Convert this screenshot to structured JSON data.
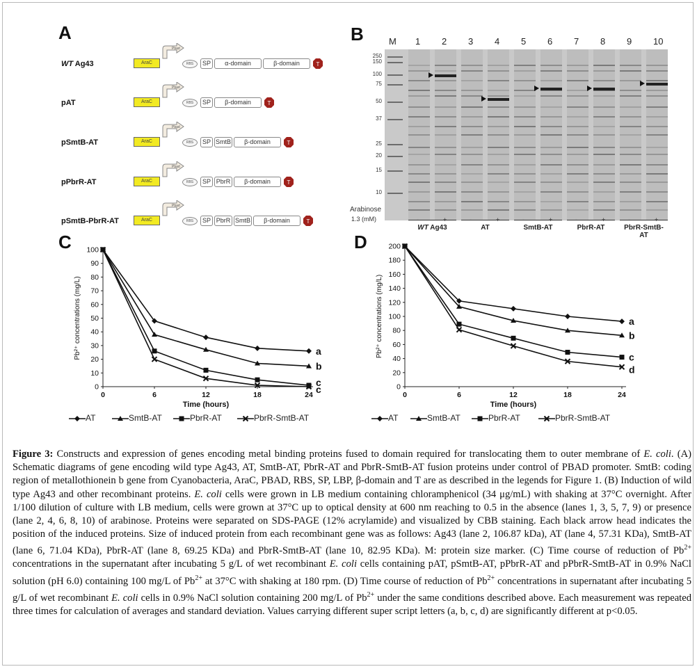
{
  "panel_a": {
    "label": "A",
    "constructs": [
      {
        "name_italic": "WT",
        "name": " Ag43",
        "segments": [
          "SP",
          "α-domain",
          "β-domain"
        ]
      },
      {
        "name_italic": "",
        "name": "pAT",
        "segments": [
          "SP",
          "β-domain"
        ]
      },
      {
        "name_italic": "",
        "name": "pSmtB-AT",
        "segments": [
          "SP",
          "SmtB",
          "β-domain"
        ]
      },
      {
        "name_italic": "",
        "name": "pPbrR-AT",
        "segments": [
          "SP",
          "PbrR",
          "β-domain"
        ]
      },
      {
        "name_italic": "",
        "name": "pSmtB-PbrR-AT",
        "segments": [
          "SP",
          "PbrR",
          "SmtB",
          "β-domain"
        ]
      }
    ],
    "arac_label": "AraC",
    "pbad_label": "Pbad",
    "rbs_label": "RBS",
    "terminator_label": "T"
  },
  "panel_b": {
    "label": "B",
    "marker_label": "M",
    "lane_numbers": [
      "1",
      "2",
      "3",
      "4",
      "5",
      "6",
      "7",
      "8",
      "9",
      "10"
    ],
    "mw_markers": [
      "250",
      "150",
      "100",
      "75",
      "50",
      "37",
      "25",
      "20",
      "15",
      "10"
    ],
    "arabinose_label": "Arabinose",
    "arabinose_conc": "1.3 (mM)",
    "minus": "-",
    "plus": "+",
    "groups": [
      {
        "name_italic": "WT",
        "name": " Ag43"
      },
      {
        "name_italic": "",
        "name": "AT"
      },
      {
        "name_italic": "",
        "name": "SmtB-AT"
      },
      {
        "name_italic": "",
        "name": "PbrR-AT"
      },
      {
        "name_italic": "",
        "name": "PbrR-SmtB-AT"
      }
    ]
  },
  "panel_c": {
    "label": "C",
    "chart_data": {
      "type": "line",
      "x": [
        0,
        6,
        12,
        18,
        24
      ],
      "xlabel": "Time (hours)",
      "ylabel": "Pb²⁺ concentrations (mg/L)",
      "ylim": [
        0,
        100
      ],
      "yticks": [
        0,
        10,
        20,
        30,
        40,
        50,
        60,
        70,
        80,
        90,
        100
      ],
      "xticks": [
        0,
        6,
        12,
        18,
        24
      ],
      "series": [
        {
          "name": "AT",
          "values": [
            100,
            48,
            36,
            28,
            26
          ],
          "letter": "a"
        },
        {
          "name": "SmtB-AT",
          "values": [
            100,
            38,
            27,
            17,
            15
          ],
          "letter": "b"
        },
        {
          "name": "PbrR-AT",
          "values": [
            100,
            26,
            12,
            5,
            1
          ],
          "letter": "c"
        },
        {
          "name": "PbrR-SmtB-AT",
          "values": [
            100,
            20,
            6,
            1,
            0
          ],
          "letter": "c"
        }
      ]
    }
  },
  "panel_d": {
    "label": "D",
    "chart_data": {
      "type": "line",
      "x": [
        0,
        6,
        12,
        18,
        24
      ],
      "xlabel": "Time (hours)",
      "ylabel": "Pb²⁺ concentrations (mg/L)",
      "ylim": [
        0,
        200
      ],
      "yticks": [
        0,
        20,
        40,
        60,
        80,
        100,
        120,
        140,
        160,
        180,
        200
      ],
      "xticks": [
        0,
        6,
        12,
        18,
        24
      ],
      "series": [
        {
          "name": "AT",
          "values": [
            200,
            122,
            111,
            100,
            93
          ],
          "letter": "a"
        },
        {
          "name": "SmtB-AT",
          "values": [
            200,
            114,
            94,
            80,
            73
          ],
          "letter": "b"
        },
        {
          "name": "PbrR-AT",
          "values": [
            200,
            89,
            69,
            49,
            42
          ],
          "letter": "c"
        },
        {
          "name": "PbrR-SmtB-AT",
          "values": [
            200,
            81,
            58,
            36,
            28
          ],
          "letter": "d"
        }
      ]
    }
  },
  "legend": [
    "AT",
    "SmtB-AT",
    "PbrR-AT",
    "PbrR-SmtB-AT"
  ],
  "caption": {
    "label": "Figure 3:",
    "text": "Constructs and expression of genes encoding metal binding proteins fused to domain required for translocating them to outer membrane of E. coli. (A) Schematic diagrams of gene encoding wild type Ag43, AT, SmtB-AT, PbrR-AT and PbrR-SmtB-AT fusion proteins under control of PBAD promoter. SmtB: coding region of metallothionein b gene from Cyanobacteria, AraC, PBAD, RBS, SP, LBP, β-domain and T are as described in the legends for Figure 1. (B) Induction of wild type Ag43 and other recombinant proteins. E. coli cells were grown in LB medium containing chloramphenicol (34 μg/mL) with shaking at 37°C overnight. After 1/100 dilution of culture with LB medium, cells were grown at 37°C up to optical density at 600 nm reaching to 0.5 in the absence (lanes 1, 3, 5, 7, 9) or presence (lane 2, 4, 6, 8, 10) of arabinose. Proteins were separated on SDS-PAGE (12% acrylamide) and visualized by CBB staining. Each black arrow head indicates the position of the induced proteins. Size of induced protein from each recombinant gene was as follows: Ag43 (lane 2, 106.87 kDa), AT (lane 4, 57.31 KDa), SmtB-AT (lane 6, 71.04 KDa), PbrR-AT (lane 8, 69.25 KDa) and PbrR-SmtB-AT (lane 10, 82.95 KDa). M: protein size marker. (C) Time course of reduction of Pb2+ concentrations in the supernatant after incubating 5 g/L of wet recombinant E. coli cells containing pAT, pSmtB-AT, pPbrR-AT and pPbrR-SmtB-AT in 0.9% NaCl solution (pH 6.0) containing 100 mg/L of Pb2+ at 37°C with shaking at 180 rpm. (D) Time course of reduction of Pb2+ concentrations in supernatant after incubating 5 g/L of wet recombinant E. coli cells in 0.9% NaCl solution containing 200 mg/L of Pb2+ under the same conditions described above. Each measurement was repeated three times for calculation of averages and standard deviation. Values carrying different super script letters (a, b, c, d) are significantly different at p<0.05."
  }
}
